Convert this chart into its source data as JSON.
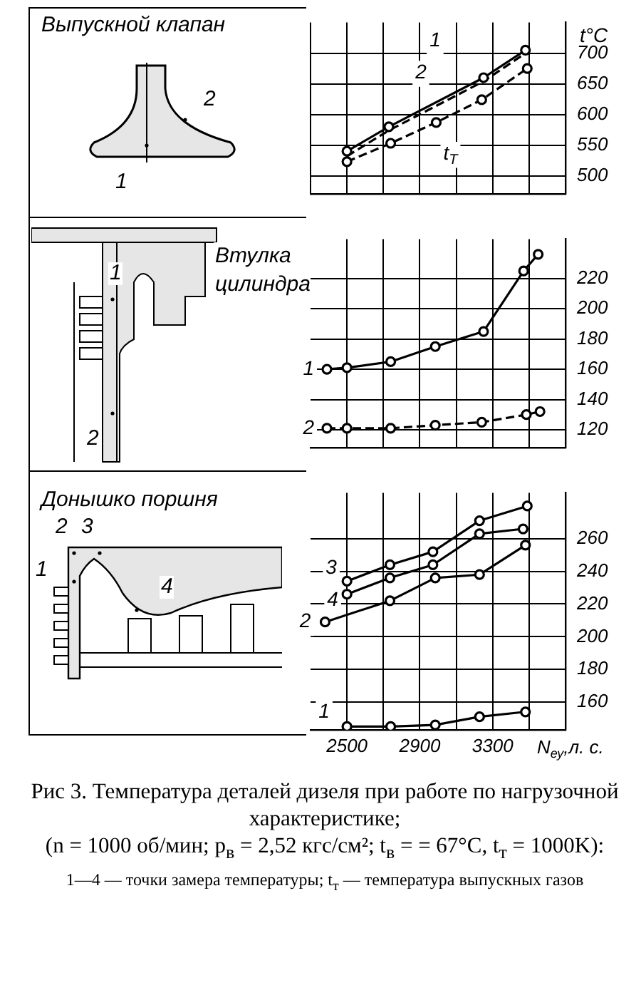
{
  "chart_data": [
    {
      "type": "line",
      "ylabel": "t°C",
      "annotations": [
        "Выпускной клапан",
        "2",
        "1"
      ],
      "xlim": [
        2300,
        3700
      ],
      "xticks": [
        {
          "value": 2300,
          "label": null
        },
        {
          "value": 2500,
          "label": null
        },
        {
          "value": 2700,
          "label": null
        },
        {
          "value": 2900,
          "label": null
        },
        {
          "value": 3100,
          "label": null
        },
        {
          "value": 3300,
          "label": null
        },
        {
          "value": 3500,
          "label": null
        }
      ],
      "ylim": [
        470,
        750
      ],
      "yticks": [
        500,
        550,
        600,
        650,
        700
      ],
      "tick_labels": "y",
      "grid": true,
      "marker": "circle",
      "series": [
        {
          "name": "1",
          "color": "#000000",
          "line_style": "solid",
          "x": [
            2500,
            2730,
            3250,
            3480
          ],
          "values": [
            540,
            580,
            660,
            705
          ]
        },
        {
          "name": "2",
          "color": "#000000",
          "line_style": "dashed",
          "marker": "none",
          "x": [
            2500,
            2730,
            3250,
            3480
          ],
          "values": [
            532,
            574,
            654,
            700
          ]
        },
        {
          "name": "t$_{T}$",
          "color": "#000000",
          "line_style": "dashed",
          "x": [
            2500,
            2740,
            2990,
            3240,
            3490
          ],
          "values": [
            523,
            553,
            587,
            624,
            675
          ]
        }
      ]
    },
    {
      "type": "line",
      "annotations": [
        "Втулка цилиндра",
        "1",
        "2"
      ],
      "xlim": [
        2300,
        3700
      ],
      "xticks": [
        {
          "value": 2500,
          "label": null
        },
        {
          "value": 2700,
          "label": null
        },
        {
          "value": 2900,
          "label": null
        },
        {
          "value": 3100,
          "label": null
        },
        {
          "value": 3300,
          "label": null
        },
        {
          "value": 3500,
          "label": null
        }
      ],
      "ylim": [
        108,
        246
      ],
      "yticks": [
        120,
        140,
        160,
        180,
        200,
        220
      ],
      "tick_labels": "y",
      "grid": true,
      "marker": "circle",
      "series": [
        {
          "name": "1",
          "color": "#000000",
          "line_style": "solid",
          "x": [
            2390,
            2500,
            2740,
            2985,
            3250,
            3470,
            3550
          ],
          "values": [
            160,
            161,
            165,
            175,
            185,
            225,
            236
          ]
        },
        {
          "name": "2",
          "color": "#000000",
          "line_style": "dashed",
          "x": [
            2390,
            2500,
            2740,
            2985,
            3240,
            3485,
            3560
          ],
          "values": [
            121,
            121,
            121,
            123,
            125,
            130,
            132
          ]
        }
      ]
    },
    {
      "type": "line",
      "title": "Рис 3. Температура деталей дизеля при работе по нагрузочной характеристике;",
      "subtitle": "(n = 1000 об/мин; p$_{в}$ = 2,52 кгс/см²; t$_{в}$ = = 67°C, t$_{т}$ = 1000K):",
      "xlabel": "N$_{еу}$,л. с.",
      "annotations": [
        "Донышко поршня",
        "2",
        "3",
        "1",
        "4",
        "1—4 — точки замера температуры; t$_{т}$ — температура выпускных газов"
      ],
      "xlim": [
        2300,
        3700
      ],
      "xticks": [
        {
          "value": 2500,
          "label": "2500"
        },
        {
          "value": 2700,
          "label": null
        },
        {
          "value": 2900,
          "label": "2900"
        },
        {
          "value": 3100,
          "label": null
        },
        {
          "value": 3300,
          "label": "3300"
        },
        {
          "value": 3500,
          "label": null
        }
      ],
      "ylim": [
        143,
        288
      ],
      "yticks": [
        160,
        180,
        200,
        220,
        240,
        260
      ],
      "grid": true,
      "marker": "circle",
      "series": [
        {
          "name": "3",
          "color": "#000000",
          "line_style": "solid",
          "x": [
            2500,
            2736,
            2972,
            3228,
            3490
          ],
          "values": [
            234,
            244,
            252,
            271,
            280
          ]
        },
        {
          "name": "4",
          "color": "#000000",
          "line_style": "solid",
          "x": [
            2500,
            2736,
            2972,
            3228,
            3467
          ],
          "values": [
            226,
            236,
            244,
            263,
            266
          ]
        },
        {
          "name": "2",
          "color": "#000000",
          "line_style": "solid",
          "x": [
            2380,
            2736,
            2985,
            3228,
            3480
          ],
          "values": [
            209,
            222,
            236,
            238,
            256
          ]
        },
        {
          "name": "1",
          "color": "#000000",
          "line_style": "solid",
          "x": [
            2500,
            2740,
            2985,
            3228,
            3480
          ],
          "values": [
            145,
            145,
            146,
            151,
            154
          ]
        }
      ]
    }
  ]
}
